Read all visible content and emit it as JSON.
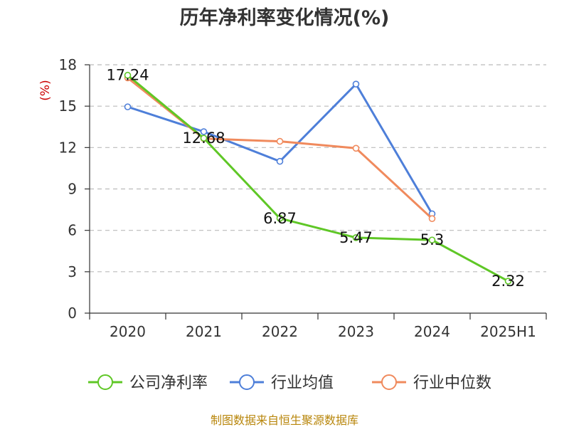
{
  "chart_data": {
    "type": "line",
    "title": "历年净利率变化情况(%)",
    "ylabel": "(%)",
    "categories": [
      "2020",
      "2021",
      "2022",
      "2023",
      "2024",
      "2025H1"
    ],
    "yticks": [
      "0",
      "3",
      "6",
      "9",
      "12",
      "15",
      "18"
    ],
    "ylim": [
      0,
      18
    ],
    "grid": true,
    "legend_placement": "bottom",
    "series": [
      {
        "name": "公司净利率",
        "color": "#5fc726",
        "values": [
          17.24,
          12.68,
          6.87,
          5.47,
          5.3,
          2.32
        ],
        "labels": [
          "17.24",
          "12.68",
          "6.87",
          "5.47",
          "5.3",
          "2.32"
        ]
      },
      {
        "name": "行业均值",
        "color": "#4e7fd9",
        "values": [
          14.95,
          13.15,
          11.0,
          16.6,
          7.2,
          null
        ]
      },
      {
        "name": "行业中位数",
        "color": "#f08a5d",
        "values": [
          17.05,
          12.65,
          12.45,
          11.95,
          6.85,
          null
        ]
      }
    ]
  },
  "source": "制图数据来自恒生聚源数据库"
}
